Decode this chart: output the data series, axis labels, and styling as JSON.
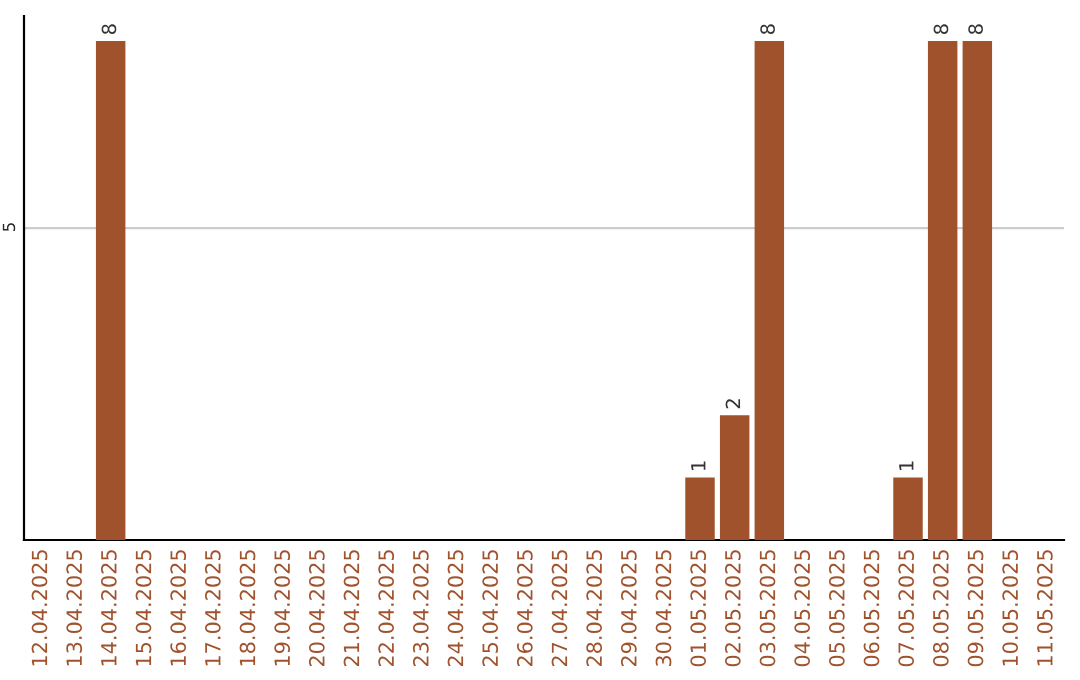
{
  "chart_data": {
    "type": "bar",
    "categories": [
      "12.04.2025",
      "13.04.2025",
      "14.04.2025",
      "15.04.2025",
      "16.04.2025",
      "17.04.2025",
      "18.04.2025",
      "19.04.2025",
      "20.04.2025",
      "21.04.2025",
      "22.04.2025",
      "23.04.2025",
      "24.04.2025",
      "25.04.2025",
      "26.04.2025",
      "27.04.2025",
      "28.04.2025",
      "29.04.2025",
      "30.04.2025",
      "01.05.2025",
      "02.05.2025",
      "03.05.2025",
      "04.05.2025",
      "05.05.2025",
      "06.05.2025",
      "07.05.2025",
      "08.05.2025",
      "09.05.2025",
      "10.05.2025",
      "11.05.2025"
    ],
    "values": [
      null,
      null,
      8,
      null,
      null,
      null,
      null,
      null,
      null,
      null,
      null,
      null,
      null,
      null,
      null,
      null,
      null,
      null,
      null,
      1,
      2,
      8,
      null,
      null,
      null,
      1,
      8,
      8,
      null,
      null
    ],
    "value_labels": [
      null,
      null,
      "8",
      null,
      null,
      null,
      null,
      null,
      null,
      null,
      null,
      null,
      null,
      null,
      null,
      null,
      null,
      null,
      null,
      "1",
      "2",
      "8",
      null,
      null,
      null,
      "1",
      "8",
      "8",
      null,
      null
    ],
    "color": "#a0522d",
    "ylim": [
      0,
      8.4
    ],
    "yticks": [
      5
    ],
    "grid": "y",
    "legend": false
  }
}
